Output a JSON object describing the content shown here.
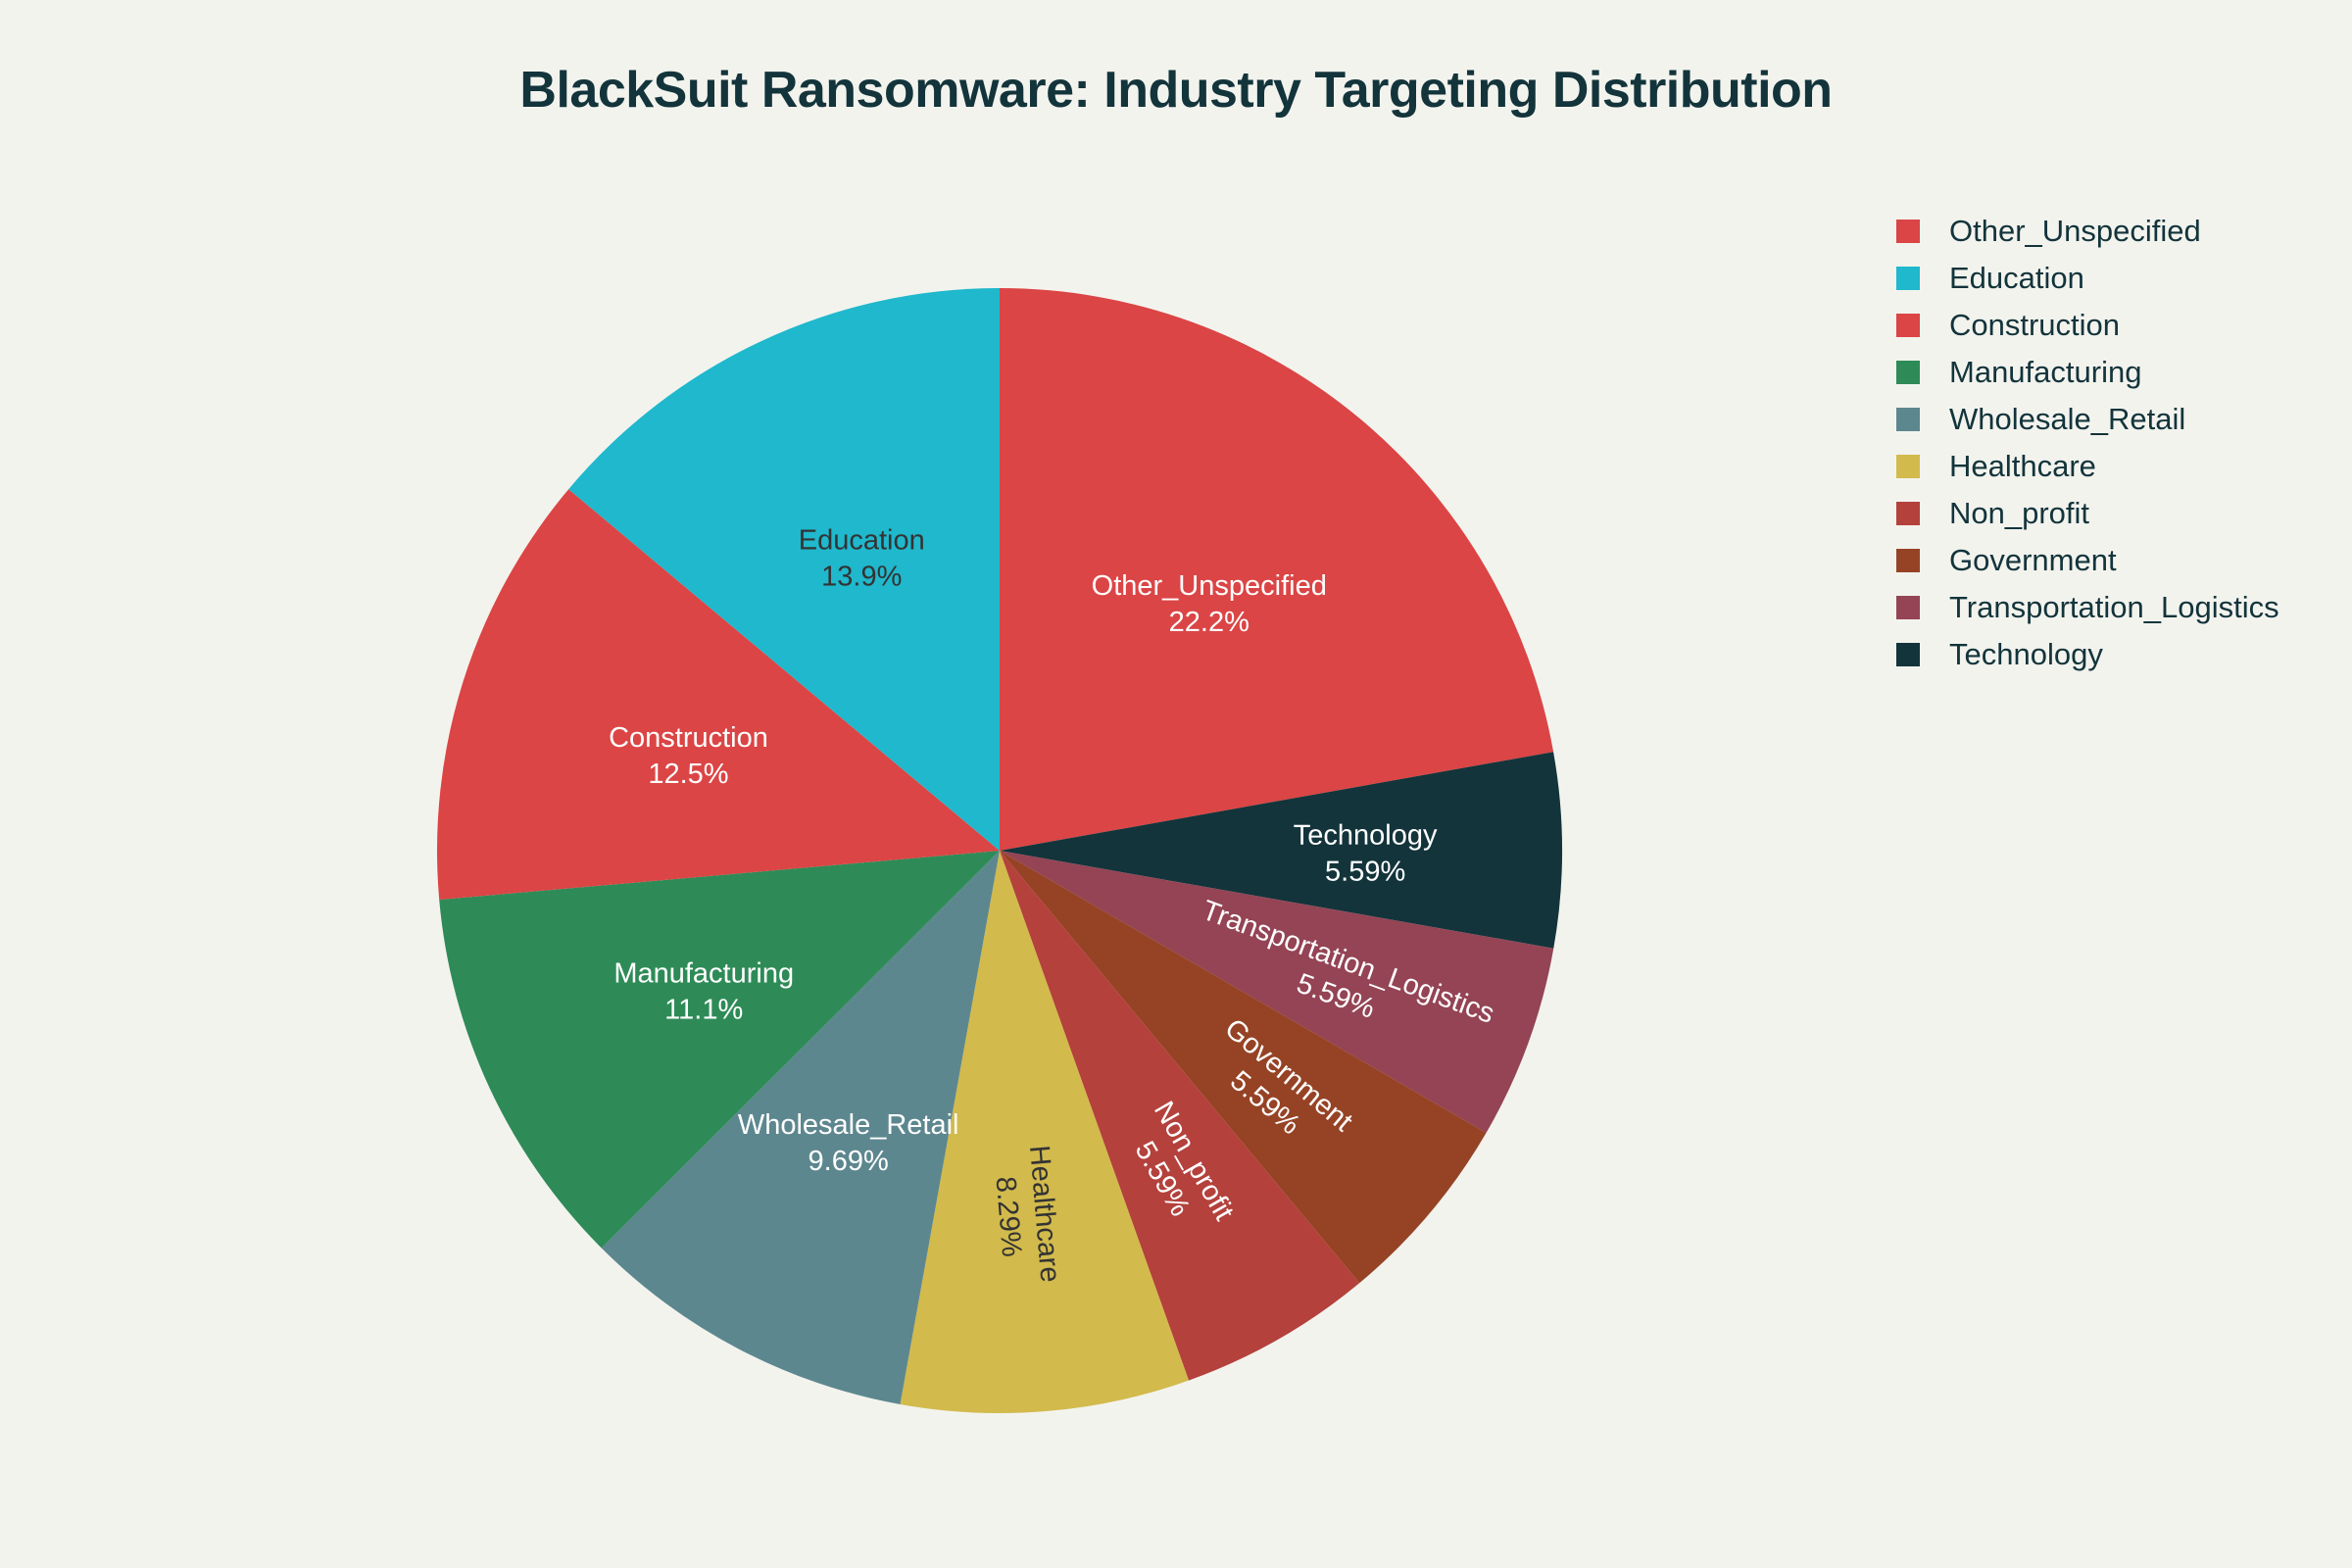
{
  "chart_data": {
    "type": "pie",
    "title": "BlackSuit Ransomware: Industry Targeting Distribution",
    "slices": [
      {
        "label": "Other_Unspecified",
        "value": 22.2,
        "percent_label": "22.2%",
        "color": "#DB4545",
        "label_color": "#FFFFFF"
      },
      {
        "label": "Technology",
        "value": 5.59,
        "percent_label": "5.59%",
        "color": "#13343B",
        "label_color": "#FFFFFF"
      },
      {
        "label": "Transportation_Logistics",
        "value": 5.59,
        "percent_label": "5.59%",
        "color": "#944454",
        "label_color": "#FFFFFF"
      },
      {
        "label": "Government",
        "value": 5.59,
        "percent_label": "5.59%",
        "color": "#964325",
        "label_color": "#FFFFFF"
      },
      {
        "label": "Non_profit",
        "value": 5.59,
        "percent_label": "5.59%",
        "color": "#B4413C",
        "label_color": "#FFFFFF"
      },
      {
        "label": "Healthcare",
        "value": 8.29,
        "percent_label": "8.29%",
        "color": "#D2BA4C",
        "label_color": "#333333"
      },
      {
        "label": "Wholesale_Retail",
        "value": 9.69,
        "percent_label": "9.69%",
        "color": "#5D878F",
        "label_color": "#FFFFFF"
      },
      {
        "label": "Manufacturing",
        "value": 11.1,
        "percent_label": "11.1%",
        "color": "#2E8B57",
        "label_color": "#FFFFFF"
      },
      {
        "label": "Construction",
        "value": 12.5,
        "percent_label": "12.5%",
        "color": "#DB4545",
        "label_color": "#FFFFFF"
      },
      {
        "label": "Education",
        "value": 13.9,
        "percent_label": "13.9%",
        "color": "#1FB8CD",
        "label_color": "#333333"
      }
    ],
    "legend": {
      "placement": "top-right",
      "entries": [
        {
          "label": "Other_Unspecified",
          "color": "#DB4545"
        },
        {
          "label": "Education",
          "color": "#1FB8CD"
        },
        {
          "label": "Construction",
          "color": "#DB4545"
        },
        {
          "label": "Manufacturing",
          "color": "#2E8B57"
        },
        {
          "label": "Wholesale_Retail",
          "color": "#5D878F"
        },
        {
          "label": "Healthcare",
          "color": "#D2BA4C"
        },
        {
          "label": "Non_profit",
          "color": "#B4413C"
        },
        {
          "label": "Government",
          "color": "#964325"
        },
        {
          "label": "Transportation_Logistics",
          "color": "#944454"
        },
        {
          "label": "Technology",
          "color": "#13343B"
        }
      ]
    }
  }
}
